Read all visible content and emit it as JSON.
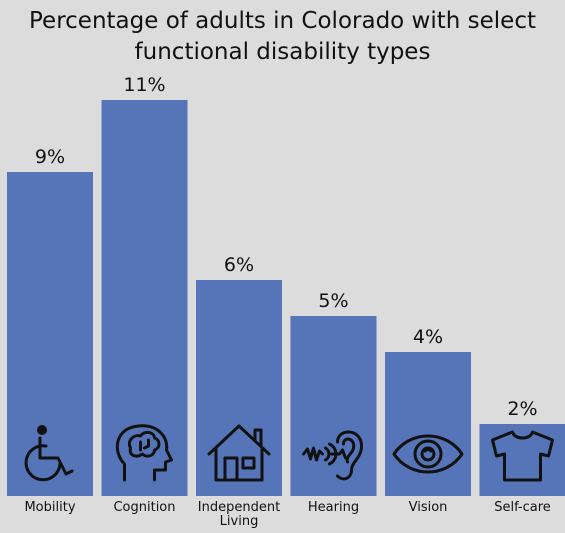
{
  "chart_data": {
    "type": "bar",
    "title": "Percentage of adults in Colorado with select functional disability types",
    "title_lines": [
      "Percentage of adults in Colorado with select",
      "functional disability types"
    ],
    "categories": [
      "Mobility",
      "Cognition",
      "Independent Living",
      "Hearing",
      "Vision",
      "Self-care"
    ],
    "values": [
      9,
      11,
      6,
      5,
      4,
      2
    ],
    "value_labels": [
      "9%",
      "11%",
      "6%",
      "5%",
      "4%",
      "2%"
    ],
    "ylim": [
      0,
      11
    ],
    "xlabel": "",
    "ylabel": "",
    "bar_color": "#5675b9",
    "background_color": "#dcdcdc",
    "icons": [
      "wheelchair-icon",
      "brain-head-icon",
      "house-icon",
      "ear-icon",
      "eye-icon",
      "shirt-icon"
    ]
  }
}
